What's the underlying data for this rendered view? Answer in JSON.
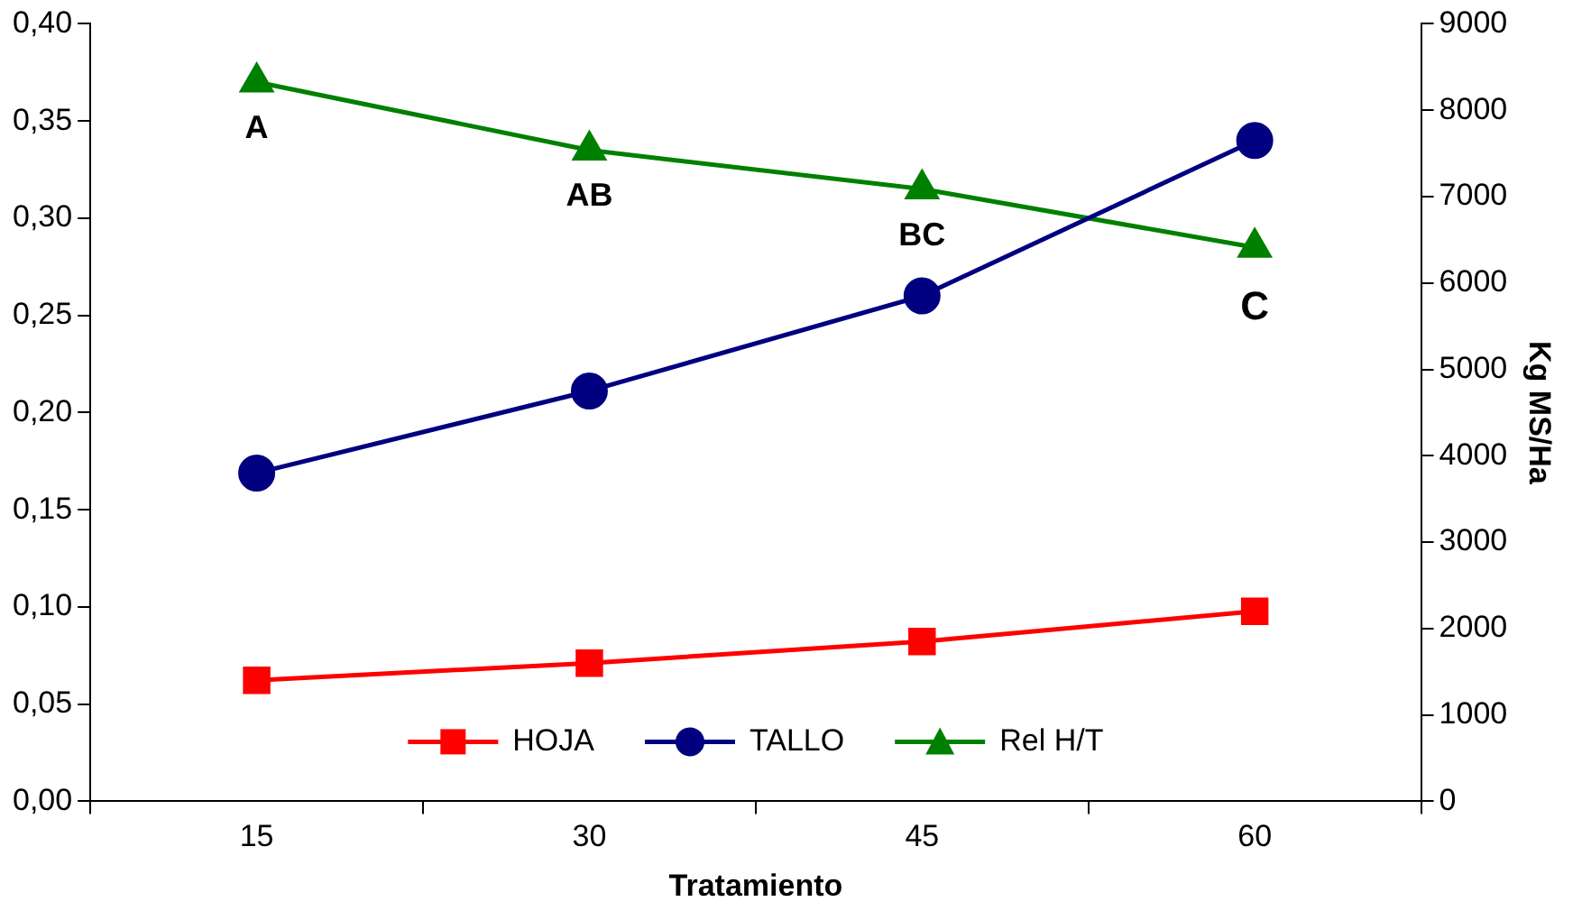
{
  "chart_data": {
    "type": "line",
    "xlabel": "Tratamiento",
    "y2label": "Kg MS/Ha",
    "categories": [
      "15",
      "30",
      "45",
      "60"
    ],
    "series": [
      {
        "name": "HOJA",
        "color": "#ff0000",
        "values": [
          1400,
          1600,
          1850,
          2200
        ],
        "axis": "y2",
        "marker": "square"
      },
      {
        "name": "TALLO",
        "color": "#000080",
        "values": [
          3800,
          4750,
          5850,
          7650
        ],
        "axis": "y2",
        "marker": "circle"
      },
      {
        "name": "Rel H/T",
        "color": "#008000",
        "values": [
          0.37,
          0.335,
          0.315,
          0.285
        ],
        "marker": "triangle"
      }
    ],
    "ylim": [
      0,
      0.4
    ],
    "yticks": [
      {
        "value": 0,
        "label": "0,00"
      },
      {
        "value": 0.05,
        "label": "0,05"
      },
      {
        "value": 0.1,
        "label": "0,10"
      },
      {
        "value": 0.15,
        "label": "0,15"
      },
      {
        "value": 0.2,
        "label": "0,20"
      },
      {
        "value": 0.25,
        "label": "0,25"
      },
      {
        "value": 0.3,
        "label": "0,30"
      },
      {
        "value": 0.35,
        "label": "0,35"
      },
      {
        "value": 0.4,
        "label": "0,40"
      }
    ],
    "y2lim": [
      0,
      9000
    ],
    "y2ticks": [
      0,
      1000,
      2000,
      3000,
      4000,
      5000,
      6000,
      7000,
      8000,
      9000
    ],
    "annotations": [
      {
        "text": "A",
        "x": "15",
        "y": 0.37
      },
      {
        "text": "AB",
        "x": "30",
        "y": 0.335
      },
      {
        "text": "BC",
        "x": "45",
        "y": 0.315
      },
      {
        "text": "C",
        "x": "60",
        "y": 0.285
      }
    ],
    "grid": false,
    "legend": "bottom",
    "line_style": "solid"
  }
}
